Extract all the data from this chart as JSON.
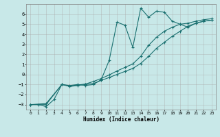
{
  "title": "",
  "xlabel": "Humidex (Indice chaleur)",
  "bg_color": "#c8e8e8",
  "grid_color": "#aaaaaa",
  "line_color": "#1a7070",
  "xlim": [
    -0.5,
    23.5
  ],
  "ylim": [
    -3.5,
    7.0
  ],
  "yticks": [
    -3,
    -2,
    -1,
    0,
    1,
    2,
    3,
    4,
    5,
    6
  ],
  "xticks": [
    0,
    1,
    2,
    3,
    4,
    5,
    6,
    7,
    8,
    9,
    10,
    11,
    12,
    13,
    14,
    15,
    16,
    17,
    18,
    19,
    20,
    21,
    22,
    23
  ],
  "line1_x": [
    0,
    1,
    2,
    3,
    4,
    5,
    6,
    7,
    8,
    9,
    10,
    11,
    12,
    13,
    14,
    15,
    16,
    17,
    18,
    19,
    20,
    21,
    22,
    23
  ],
  "line1_y": [
    -3.0,
    -3.0,
    -3.2,
    -2.5,
    -1.0,
    -1.1,
    -1.0,
    -1.1,
    -1.0,
    -0.5,
    1.4,
    5.2,
    4.9,
    2.7,
    6.6,
    5.7,
    6.3,
    6.2,
    5.3,
    5.0,
    4.7,
    5.1,
    5.3,
    5.4
  ],
  "line2_x": [
    0,
    2,
    4,
    5,
    6,
    7,
    8,
    9,
    10,
    11,
    12,
    13,
    14,
    15,
    16,
    17,
    18,
    19,
    20,
    21,
    22,
    23
  ],
  "line2_y": [
    -3.0,
    -3.0,
    -1.0,
    -1.2,
    -1.1,
    -1.0,
    -0.9,
    -0.6,
    -0.3,
    0.0,
    0.3,
    0.6,
    1.1,
    1.8,
    2.6,
    3.2,
    3.8,
    4.3,
    4.8,
    5.1,
    5.3,
    5.4
  ],
  "line3_x": [
    0,
    2,
    4,
    5,
    6,
    7,
    8,
    9,
    10,
    11,
    12,
    13,
    14,
    15,
    16,
    17,
    18,
    19,
    20,
    21,
    22,
    23
  ],
  "line3_y": [
    -3.0,
    -2.9,
    -1.0,
    -1.15,
    -1.05,
    -0.95,
    -0.7,
    -0.4,
    -0.05,
    0.35,
    0.7,
    1.05,
    1.8,
    2.9,
    3.7,
    4.3,
    4.7,
    5.0,
    5.1,
    5.3,
    5.45,
    5.55
  ]
}
